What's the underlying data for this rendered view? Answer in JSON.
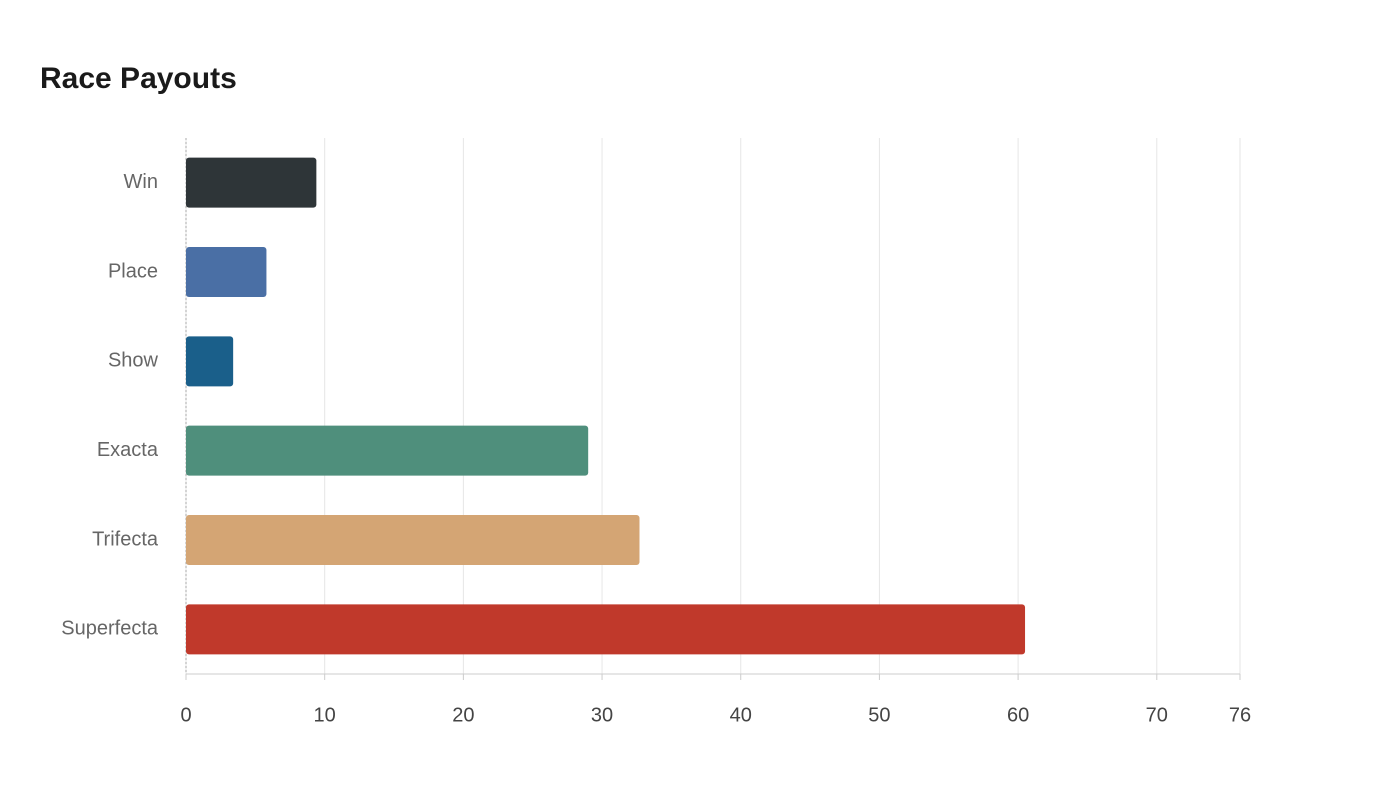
{
  "chart_data": {
    "type": "hbar",
    "title": "Race Payouts",
    "categories": [
      "Win",
      "Place",
      "Show",
      "Exacta",
      "Trifecta",
      "Superfecta"
    ],
    "values": [
      9.4,
      5.8,
      3.4,
      29.0,
      32.7,
      60.5
    ],
    "colors": [
      "#2e3538",
      "#4a6fa5",
      "#1a5f8a",
      "#4f8f7c",
      "#d4a574",
      "#c0392b"
    ],
    "xlim": [
      0,
      76
    ],
    "xticks": [
      0,
      10,
      20,
      30,
      40,
      50,
      60,
      70,
      76
    ],
    "grid": true
  }
}
